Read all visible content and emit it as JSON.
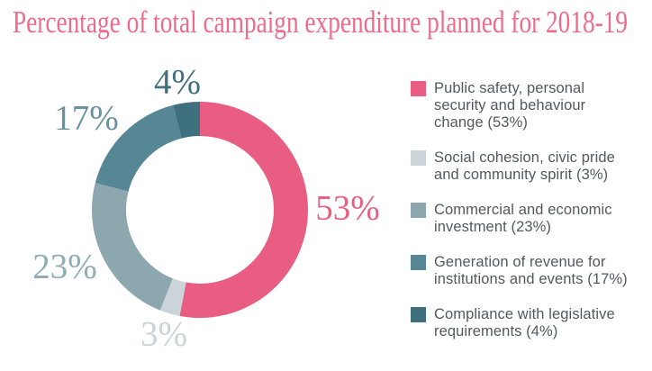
{
  "title": {
    "text": "Percentage of total campaign expenditure planned for 2018-19",
    "color": "#ee6b8c"
  },
  "legend_text_color": "#55585c",
  "chart_data": {
    "type": "pie",
    "subtype": "donut",
    "title": "Percentage of total campaign expenditure planned for 2018-19",
    "units": "percent",
    "start_angle_deg": 0,
    "direction": "clockwise",
    "inner_radius_ratio": 0.68,
    "legend_position": "right",
    "segments": [
      {
        "label": "Public safety, personal\nsecurity and behaviour\nchange (53%)",
        "value": 53,
        "pct_label": "53%",
        "color": "#e85d81",
        "label_color": "#e86185"
      },
      {
        "label": "Social cohesion, civic pride\nand community spirit (3%)",
        "value": 3,
        "pct_label": "3%",
        "color": "#cbd4d8",
        "label_color": "#c9d3d8"
      },
      {
        "label": "Commercial and economic\ninvestment (23%)",
        "value": 23,
        "pct_label": "23%",
        "color": "#8da7ae",
        "label_color": "#90acb7"
      },
      {
        "label": "Generation of revenue for\ninstitutions and events (17%)",
        "value": 17,
        "pct_label": "17%",
        "color": "#578694",
        "label_color": "#68929f"
      },
      {
        "label": "Compliance with legislative\nrequirements (4%)",
        "value": 4,
        "pct_label": "4%",
        "color": "#3f707e",
        "label_color": "#40707e"
      }
    ]
  }
}
